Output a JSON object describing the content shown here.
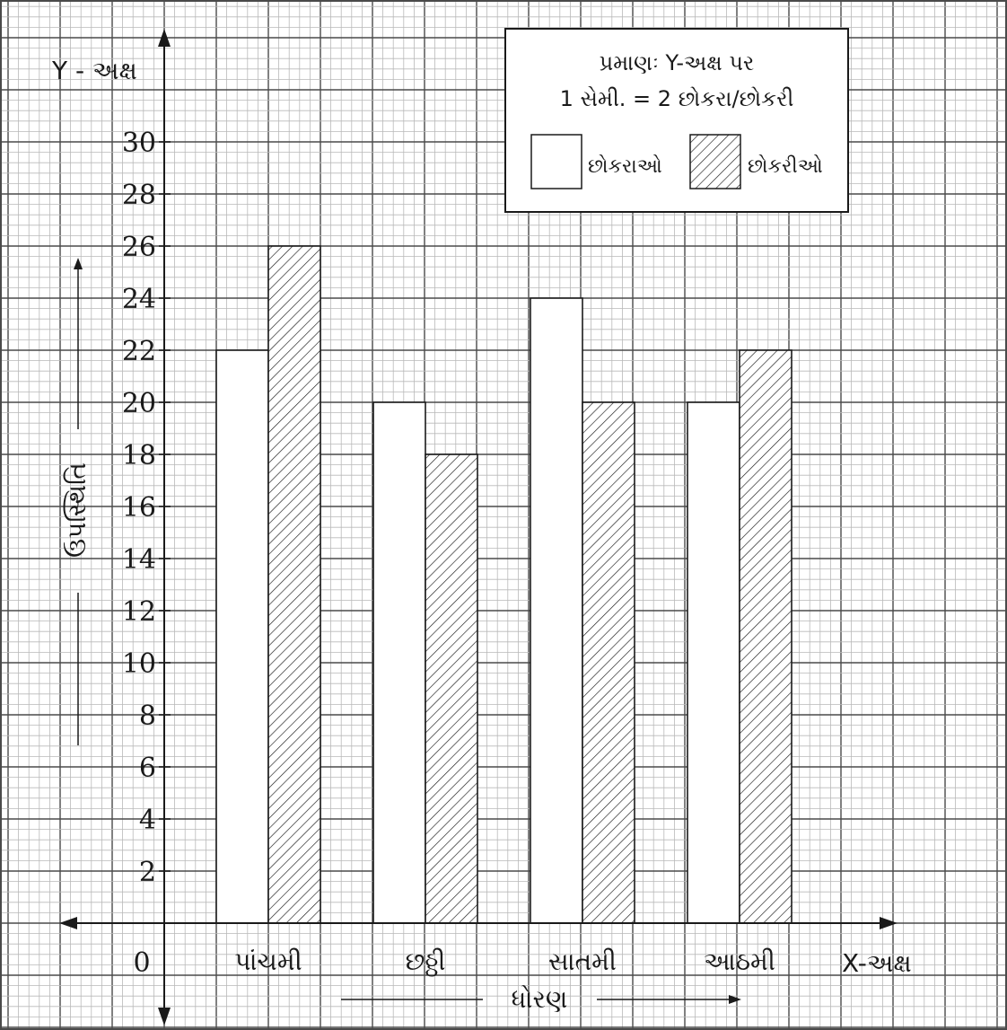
{
  "chart_data": {
    "type": "bar",
    "title": "",
    "xlabel": "ધોરણ",
    "ylabel": "ઉપસ્થિતિ",
    "x_axis_name": "X-અક્ષ",
    "y_axis_name": "Y - અક્ષ",
    "origin_label": "0",
    "categories": [
      "પાંચમી",
      "છઠ્ઠી",
      "સાતમી",
      "આઠમી"
    ],
    "series": [
      {
        "name": "છોકરાઓ",
        "values": [
          22,
          20,
          24,
          20
        ],
        "fill": "#ffffff"
      },
      {
        "name": "છોકરીઓ",
        "values": [
          26,
          18,
          20,
          22
        ],
        "fill": "hatch"
      }
    ],
    "ylim": [
      0,
      30
    ],
    "yticks": [
      "2",
      "4",
      "6",
      "8",
      "10",
      "12",
      "14",
      "16",
      "18",
      "20",
      "22",
      "24",
      "26",
      "28",
      "30"
    ],
    "grid": true,
    "legend": {
      "position": "top-right",
      "scale_line1": "પ્રમાણઃ  Y-અક્ષ પર",
      "scale_line2": "1 સેમી.  =  2 છોકરા/છોકરી"
    },
    "colors": {
      "grid_major": "#4a4a4a",
      "grid_minor": "#b9b9b9",
      "ink": "#1a1a1a"
    }
  }
}
